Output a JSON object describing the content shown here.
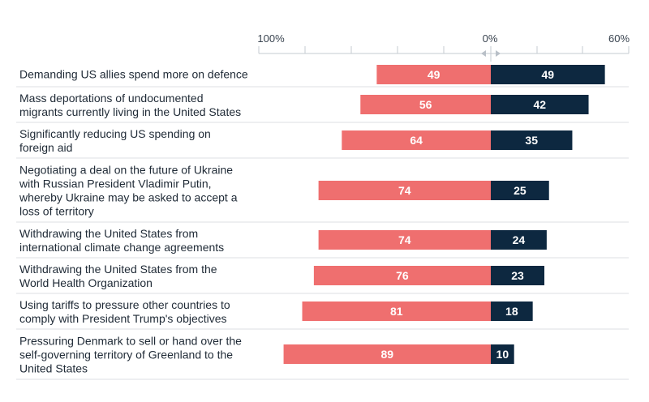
{
  "chart_data": {
    "type": "bar",
    "orientation": "horizontal-diverging",
    "axis_ticks": [
      "100%",
      "0%",
      "60%"
    ],
    "xlim": [
      -100,
      60
    ],
    "colors": {
      "left": "#ef6f6f",
      "right": "#0d2840"
    },
    "categories": [
      [
        "Demanding US allies spend more on defence"
      ],
      [
        "Mass deportations of undocumented",
        "migrants currently living in the United States"
      ],
      [
        "Significantly reducing US spending on",
        "foreign aid"
      ],
      [
        "Negotiating a deal on the future of Ukraine",
        "with Russian President Vladimir Putin,",
        "whereby Ukraine may be asked to accept a",
        "loss of territory"
      ],
      [
        "Withdrawing the United States from",
        "international climate change agreements"
      ],
      [
        "Withdrawing the United States from the",
        "World Health Organization"
      ],
      [
        "Using tariffs to pressure other countries to",
        "comply with President Trump's objectives"
      ],
      [
        "Pressuring Denmark to sell or hand over the",
        "self-governing territory of Greenland to the",
        "United States"
      ]
    ],
    "series": [
      {
        "name": "left",
        "values": [
          49,
          56,
          64,
          74,
          74,
          76,
          81,
          89
        ]
      },
      {
        "name": "right",
        "values": [
          49,
          42,
          35,
          25,
          24,
          23,
          18,
          10
        ]
      }
    ]
  }
}
